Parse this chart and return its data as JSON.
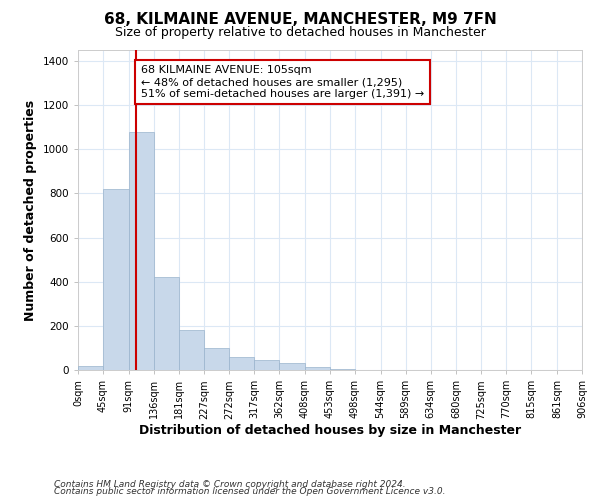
{
  "title": "68, KILMAINE AVENUE, MANCHESTER, M9 7FN",
  "subtitle": "Size of property relative to detached houses in Manchester",
  "xlabel": "Distribution of detached houses by size in Manchester",
  "ylabel": "Number of detached properties",
  "footnote1": "Contains HM Land Registry data © Crown copyright and database right 2024.",
  "footnote2": "Contains public sector information licensed under the Open Government Licence v3.0.",
  "annotation_line1": "68 KILMAINE AVENUE: 105sqm",
  "annotation_line2": "← 48% of detached houses are smaller (1,295)",
  "annotation_line3": "51% of semi-detached houses are larger (1,391) →",
  "bar_edges": [
    0,
    45,
    91,
    136,
    181,
    227,
    272,
    317,
    362,
    408,
    453,
    498,
    544,
    589,
    634,
    680,
    725,
    770,
    815,
    861,
    906
  ],
  "bar_values": [
    20,
    820,
    1080,
    420,
    180,
    100,
    58,
    45,
    33,
    15,
    5,
    0,
    0,
    0,
    0,
    0,
    0,
    0,
    0,
    0
  ],
  "bar_color": "#c8d8ea",
  "bar_edge_color": "#99b3cc",
  "vline_x": 105,
  "vline_color": "#cc0000",
  "annotation_box_color": "#cc0000",
  "bg_color": "#ffffff",
  "grid_color": "#dce8f5",
  "ylim": [
    0,
    1450
  ],
  "xlim": [
    0,
    906
  ],
  "tick_labels": [
    "0sqm",
    "45sqm",
    "91sqm",
    "136sqm",
    "181sqm",
    "227sqm",
    "272sqm",
    "317sqm",
    "362sqm",
    "408sqm",
    "453sqm",
    "498sqm",
    "544sqm",
    "589sqm",
    "634sqm",
    "680sqm",
    "725sqm",
    "770sqm",
    "815sqm",
    "861sqm",
    "906sqm"
  ],
  "title_fontsize": 11,
  "subtitle_fontsize": 9,
  "annotation_fontsize": 8,
  "axis_label_fontsize": 9,
  "tick_fontsize": 7,
  "footnote_fontsize": 6.5,
  "ytick_values": [
    0,
    200,
    400,
    600,
    800,
    1000,
    1200,
    1400
  ]
}
